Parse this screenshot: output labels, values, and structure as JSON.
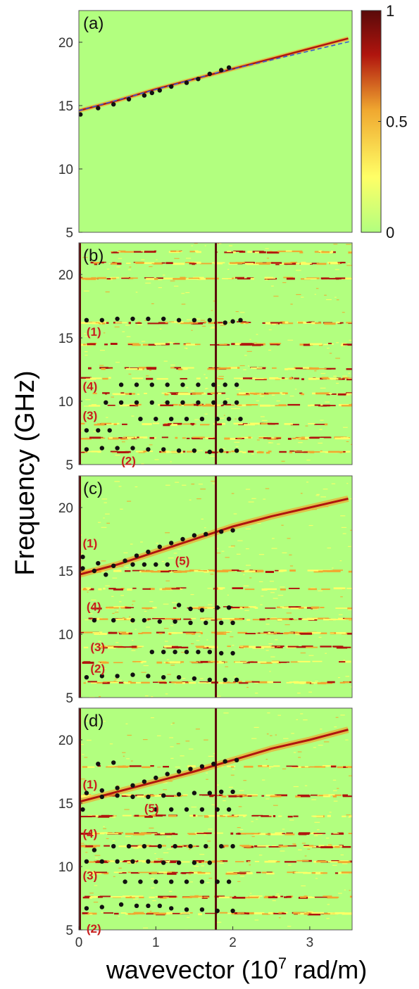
{
  "figure": {
    "ylabel": "Frequency (GHz)",
    "xlabel_main": "wavevector (10",
    "xlabel_sup": "7",
    "xlabel_tail": " rad/m)"
  },
  "colors": {
    "background": "#b2ff7f",
    "low": "#ffff66",
    "mid": "#f0a830",
    "high": "#b0150e",
    "dark": "#5a0a0a",
    "points": "#111111",
    "band_labels": "#c8201e",
    "reference_line": "#3a5ad0"
  },
  "colorbar": {
    "ticks": [
      {
        "value": 1,
        "label": "1"
      },
      {
        "value": 0.5,
        "label": "0.5"
      },
      {
        "value": 0,
        "label": "0"
      }
    ]
  },
  "chart_data": [
    {
      "type": "heatmap",
      "panel_label": "(a)",
      "xlim": [
        0,
        3.55
      ],
      "ylim": [
        5,
        22.5
      ],
      "yticks": [
        5,
        10,
        15,
        20
      ],
      "xticks": [],
      "vertical_line_x": null,
      "dispersion": [
        [
          0,
          14.6
        ],
        [
          0.5,
          15.4
        ],
        [
          1.0,
          16.3
        ],
        [
          1.5,
          17.1
        ],
        [
          2.0,
          17.9
        ],
        [
          2.5,
          18.7
        ],
        [
          3.0,
          19.5
        ],
        [
          3.5,
          20.3
        ]
      ],
      "reference_line": [
        [
          0,
          14.6
        ],
        [
          1.8,
          17.6
        ],
        [
          3.55,
          20.1
        ]
      ],
      "points": [
        [
          0.02,
          14.3
        ],
        [
          0.25,
          14.8
        ],
        [
          0.45,
          15.1
        ],
        [
          0.65,
          15.5
        ],
        [
          0.85,
          15.8
        ],
        [
          0.95,
          16.0
        ],
        [
          1.05,
          16.2
        ],
        [
          1.2,
          16.5
        ],
        [
          1.4,
          16.8
        ],
        [
          1.55,
          17.1
        ],
        [
          1.7,
          17.5
        ],
        [
          1.85,
          17.8
        ],
        [
          1.95,
          18.0
        ]
      ],
      "band_labels": [],
      "horizontal_bands": []
    },
    {
      "type": "heatmap",
      "panel_label": "(b)",
      "xlim": [
        0,
        3.55
      ],
      "ylim": [
        5,
        22.5
      ],
      "yticks": [
        5,
        10,
        15,
        20
      ],
      "xticks": [],
      "vertical_line_x": 1.78,
      "dispersion": [],
      "points": [
        [
          0.1,
          16.4
        ],
        [
          0.3,
          16.4
        ],
        [
          0.5,
          16.5
        ],
        [
          0.7,
          16.5
        ],
        [
          0.9,
          16.5
        ],
        [
          1.1,
          16.5
        ],
        [
          1.3,
          16.4
        ],
        [
          1.5,
          16.4
        ],
        [
          1.7,
          16.4
        ],
        [
          1.9,
          16.2
        ],
        [
          2.0,
          16.3
        ],
        [
          2.1,
          16.4
        ],
        [
          0.55,
          11.3
        ],
        [
          0.75,
          11.3
        ],
        [
          0.95,
          11.3
        ],
        [
          1.15,
          11.3
        ],
        [
          1.35,
          11.3
        ],
        [
          1.55,
          11.3
        ],
        [
          1.75,
          11.3
        ],
        [
          1.9,
          11.3
        ],
        [
          2.05,
          11.3
        ],
        [
          0.35,
          9.9
        ],
        [
          0.55,
          9.9
        ],
        [
          0.75,
          9.9
        ],
        [
          0.95,
          9.9
        ],
        [
          1.15,
          9.9
        ],
        [
          1.35,
          9.9
        ],
        [
          1.55,
          9.9
        ],
        [
          1.75,
          9.9
        ],
        [
          1.9,
          9.9
        ],
        [
          2.05,
          9.9
        ],
        [
          0.8,
          8.6
        ],
        [
          1.0,
          8.6
        ],
        [
          1.2,
          8.6
        ],
        [
          1.4,
          8.6
        ],
        [
          1.6,
          8.6
        ],
        [
          1.8,
          8.6
        ],
        [
          1.95,
          8.6
        ],
        [
          2.1,
          8.6
        ],
        [
          0.1,
          7.7
        ],
        [
          0.25,
          7.7
        ],
        [
          0.4,
          7.7
        ],
        [
          0.1,
          6.2
        ],
        [
          0.3,
          6.3
        ],
        [
          0.5,
          6.3
        ],
        [
          0.7,
          6.3
        ],
        [
          0.9,
          6.2
        ],
        [
          1.1,
          6.2
        ],
        [
          1.3,
          6.1
        ],
        [
          1.5,
          6.1
        ],
        [
          1.7,
          6.0
        ],
        [
          1.85,
          6.1
        ],
        [
          2.05,
          6.1
        ]
      ],
      "band_labels": [
        {
          "text": "(1)",
          "x": 0.1,
          "y": 15.5
        },
        {
          "text": "(4)",
          "x": 0.05,
          "y": 11.2
        },
        {
          "text": "(3)",
          "x": 0.05,
          "y": 8.9
        },
        {
          "text": "(2)",
          "x": 0.55,
          "y": 5.3
        }
      ],
      "horizontal_bands": [
        21.8,
        20.9,
        19.7,
        16.2,
        14.5,
        12.6,
        11.8,
        10.6,
        9.7,
        8.2,
        7.1,
        6.0
      ]
    },
    {
      "type": "heatmap",
      "panel_label": "(c)",
      "xlim": [
        0,
        3.55
      ],
      "ylim": [
        5,
        22.5
      ],
      "yticks": [
        5,
        10,
        15,
        20
      ],
      "xticks": [],
      "vertical_line_x": 1.78,
      "dispersion": [
        [
          0,
          14.7
        ],
        [
          0.5,
          15.5
        ],
        [
          1.0,
          16.5
        ],
        [
          1.5,
          17.5
        ],
        [
          2.0,
          18.5
        ],
        [
          2.5,
          19.3
        ],
        [
          3.0,
          20.0
        ],
        [
          3.5,
          20.7
        ]
      ],
      "points": [
        [
          0.05,
          15.2
        ],
        [
          0.2,
          15.0
        ],
        [
          0.35,
          14.7
        ],
        [
          0.05,
          16.1
        ],
        [
          0.25,
          15.6
        ],
        [
          0.45,
          15.4
        ],
        [
          0.6,
          15.8
        ],
        [
          0.75,
          16.2
        ],
        [
          0.9,
          16.5
        ],
        [
          1.05,
          16.9
        ],
        [
          1.2,
          17.2
        ],
        [
          1.35,
          17.5
        ],
        [
          1.5,
          17.8
        ],
        [
          1.65,
          17.9
        ],
        [
          1.85,
          18.1
        ],
        [
          2.0,
          18.2
        ],
        [
          0.7,
          15.5
        ],
        [
          0.85,
          15.5
        ],
        [
          1.0,
          15.5
        ],
        [
          1.15,
          15.5
        ],
        [
          1.3,
          12.3
        ],
        [
          1.45,
          12.0
        ],
        [
          1.6,
          11.9
        ],
        [
          1.8,
          12.1
        ],
        [
          1.95,
          12.1
        ],
        [
          0.2,
          11.1
        ],
        [
          0.45,
          11.1
        ],
        [
          0.7,
          11.1
        ],
        [
          0.85,
          11.1
        ],
        [
          1.05,
          11.0
        ],
        [
          1.25,
          11.0
        ],
        [
          1.45,
          10.9
        ],
        [
          1.65,
          10.9
        ],
        [
          1.85,
          10.9
        ],
        [
          2.0,
          10.9
        ],
        [
          0.95,
          8.6
        ],
        [
          1.1,
          8.6
        ],
        [
          1.25,
          8.6
        ],
        [
          1.4,
          8.6
        ],
        [
          1.55,
          8.6
        ],
        [
          1.7,
          8.6
        ],
        [
          1.85,
          8.5
        ],
        [
          2.0,
          8.5
        ],
        [
          0.1,
          6.6
        ],
        [
          0.3,
          6.7
        ],
        [
          0.5,
          6.7
        ],
        [
          0.7,
          6.8
        ],
        [
          0.9,
          6.7
        ],
        [
          1.1,
          6.6
        ],
        [
          1.3,
          6.6
        ],
        [
          1.5,
          6.5
        ],
        [
          1.7,
          6.4
        ],
        [
          1.9,
          6.4
        ],
        [
          2.05,
          6.4
        ]
      ],
      "band_labels": [
        {
          "text": "(1)",
          "x": 0.05,
          "y": 17.2
        },
        {
          "text": "(5)",
          "x": 1.25,
          "y": 15.8
        },
        {
          "text": "(4)",
          "x": 0.1,
          "y": 12.2
        },
        {
          "text": "(3)",
          "x": 0.15,
          "y": 9.0
        },
        {
          "text": "(2)",
          "x": 0.15,
          "y": 7.3
        }
      ],
      "horizontal_bands": [
        15.0,
        13.6,
        12.1,
        11.2,
        10.1,
        9.0,
        7.8,
        6.2
      ]
    },
    {
      "type": "heatmap",
      "panel_label": "(d)",
      "xlim": [
        0,
        3.55
      ],
      "ylim": [
        5,
        22.5
      ],
      "yticks": [
        5,
        10,
        15,
        20
      ],
      "xticks": [
        0,
        1,
        2,
        3
      ],
      "vertical_line_x": 1.78,
      "dispersion": [
        [
          0,
          15.1
        ],
        [
          0.5,
          15.9
        ],
        [
          1.0,
          16.7
        ],
        [
          1.5,
          17.5
        ],
        [
          2.0,
          18.4
        ],
        [
          2.5,
          19.3
        ],
        [
          3.0,
          20.0
        ],
        [
          3.5,
          20.8
        ]
      ],
      "points": [
        [
          0.25,
          18.1
        ],
        [
          0.45,
          18.2
        ],
        [
          0.1,
          15.8
        ],
        [
          0.3,
          16.0
        ],
        [
          0.5,
          16.2
        ],
        [
          0.7,
          16.4
        ],
        [
          0.85,
          16.7
        ],
        [
          1.0,
          17.0
        ],
        [
          1.15,
          17.3
        ],
        [
          1.3,
          17.5
        ],
        [
          1.45,
          17.7
        ],
        [
          1.6,
          17.9
        ],
        [
          1.75,
          18.1
        ],
        [
          1.9,
          18.3
        ],
        [
          2.05,
          18.4
        ],
        [
          0.05,
          14.5
        ],
        [
          0.3,
          15.5
        ],
        [
          0.5,
          15.6
        ],
        [
          0.7,
          15.5
        ],
        [
          0.9,
          15.5
        ],
        [
          1.1,
          15.6
        ],
        [
          1.3,
          15.7
        ],
        [
          1.5,
          15.8
        ],
        [
          1.7,
          15.8
        ],
        [
          1.85,
          15.9
        ],
        [
          2.0,
          15.9
        ],
        [
          1.0,
          14.5
        ],
        [
          1.2,
          14.5
        ],
        [
          1.4,
          14.5
        ],
        [
          1.6,
          14.5
        ],
        [
          1.8,
          14.5
        ],
        [
          1.95,
          14.5
        ],
        [
          0.2,
          11.3
        ],
        [
          0.45,
          11.6
        ],
        [
          0.65,
          11.6
        ],
        [
          0.85,
          11.6
        ],
        [
          1.05,
          11.6
        ],
        [
          1.25,
          11.6
        ],
        [
          1.45,
          11.6
        ],
        [
          1.65,
          11.6
        ],
        [
          1.85,
          11.6
        ],
        [
          2.0,
          11.6
        ],
        [
          0.1,
          10.4
        ],
        [
          0.3,
          10.4
        ],
        [
          0.5,
          10.4
        ],
        [
          0.7,
          10.4
        ],
        [
          0.9,
          10.4
        ],
        [
          1.1,
          10.3
        ],
        [
          1.3,
          10.3
        ],
        [
          1.5,
          10.3
        ],
        [
          1.7,
          10.3
        ],
        [
          0.6,
          8.8
        ],
        [
          0.8,
          8.8
        ],
        [
          1.0,
          8.8
        ],
        [
          1.2,
          8.8
        ],
        [
          1.4,
          8.8
        ],
        [
          1.6,
          8.8
        ],
        [
          1.8,
          8.8
        ],
        [
          1.95,
          8.8
        ],
        [
          0.1,
          6.7
        ],
        [
          0.3,
          6.8
        ],
        [
          0.55,
          7.0
        ],
        [
          0.75,
          6.9
        ],
        [
          0.9,
          6.9
        ],
        [
          1.05,
          6.9
        ],
        [
          1.2,
          6.7
        ],
        [
          1.4,
          6.6
        ],
        [
          1.6,
          6.6
        ],
        [
          1.8,
          6.5
        ],
        [
          2.0,
          6.5
        ]
      ],
      "band_labels": [
        {
          "text": "(1)",
          "x": 0.05,
          "y": 16.5
        },
        {
          "text": "(5)",
          "x": 0.85,
          "y": 14.6
        },
        {
          "text": "(4)",
          "x": 0.05,
          "y": 12.6
        },
        {
          "text": "(3)",
          "x": 0.05,
          "y": 9.3
        },
        {
          "text": "(2)",
          "x": 0.1,
          "y": 5.1
        }
      ],
      "horizontal_bands": [
        17.9,
        15.6,
        14.0,
        12.6,
        11.6,
        10.4,
        9.5,
        7.6,
        6.3
      ]
    }
  ]
}
